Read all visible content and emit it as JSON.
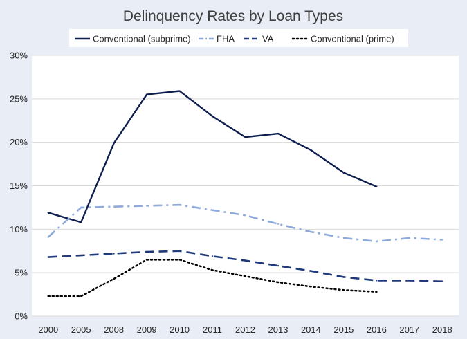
{
  "chart_data": {
    "type": "line",
    "title": "Delinquency Rates by Loan Types",
    "xlabel": "",
    "ylabel": "",
    "categories": [
      "2000",
      "2005",
      "2008",
      "2009",
      "2010",
      "2011",
      "2012",
      "2013",
      "2014",
      "2015",
      "2016",
      "2017",
      "2018"
    ],
    "y_tick_labels": [
      "0%",
      "5%",
      "10%",
      "15%",
      "20%",
      "25%",
      "30%"
    ],
    "ylim": [
      0,
      30
    ],
    "y_unit": "%",
    "grid": true,
    "legend_position": "top",
    "series": [
      {
        "name": "Conventional (subprime)",
        "color": "#0e1e4f",
        "style": "solid",
        "values": [
          11.9,
          10.8,
          19.9,
          25.5,
          25.9,
          23.0,
          20.6,
          21.0,
          19.1,
          16.5,
          14.9,
          null,
          null
        ]
      },
      {
        "name": "FHA",
        "color": "#8eaadb",
        "style": "dash-dot",
        "values": [
          9.1,
          12.5,
          12.6,
          12.7,
          12.8,
          12.2,
          11.6,
          10.6,
          9.7,
          9.0,
          8.6,
          9.0,
          8.8
        ]
      },
      {
        "name": "VA",
        "color": "#1f3a7a",
        "style": "dash",
        "values": [
          6.8,
          7.0,
          7.2,
          7.4,
          7.5,
          6.9,
          6.4,
          5.8,
          5.2,
          4.5,
          4.1,
          4.1,
          4.0
        ]
      },
      {
        "name": "Conventional (prime)",
        "color": "#000000",
        "style": "dot",
        "values": [
          2.3,
          2.3,
          4.3,
          6.5,
          6.5,
          5.3,
          4.6,
          3.9,
          3.4,
          3.0,
          2.8,
          null,
          null
        ]
      }
    ]
  }
}
